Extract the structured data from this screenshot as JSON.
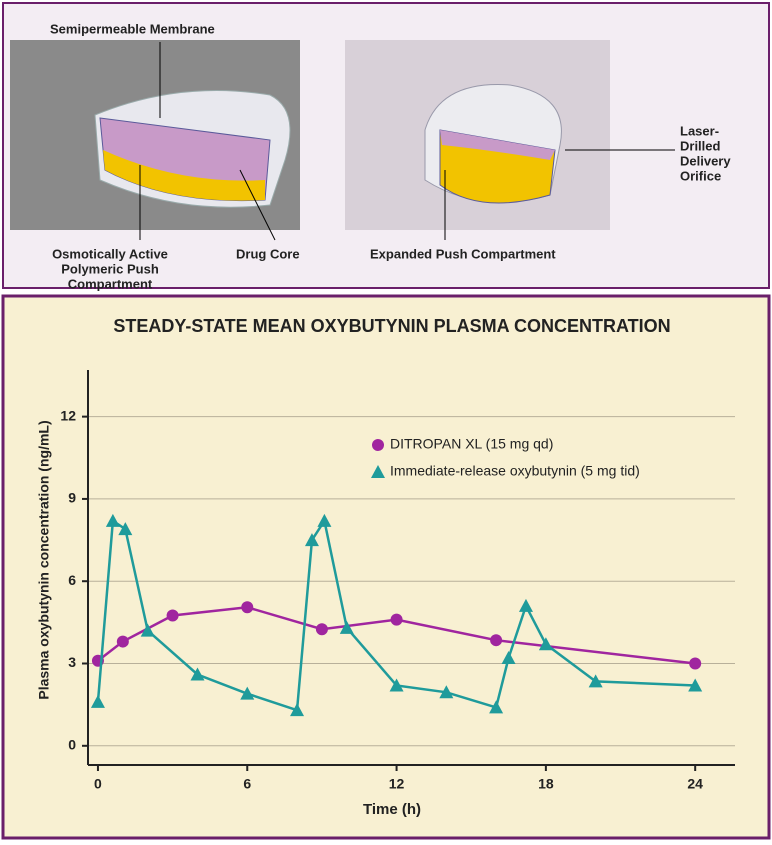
{
  "illustration": {
    "membrane": "Semipermeable Membrane",
    "push_compartment": [
      "Osmotically Active",
      "Polymeric Push",
      "Compartment"
    ],
    "drug_core": "Drug Core",
    "expanded": "Expanded Push Compartment",
    "orifice": [
      "Laser-",
      "Drilled",
      "Delivery",
      "Orifice"
    ]
  },
  "chart_data": {
    "type": "line",
    "title": "STEADY-STATE MEAN OXYBUTYNIN PLASMA CONCENTRATION",
    "x_label": "Time (h)",
    "y_label": "Plasma oxybutynin concentration (ng/mL)",
    "xlim": [
      -0.4,
      25.6
    ],
    "ylim": [
      -0.7,
      13.7
    ],
    "xticks": [
      0,
      6,
      12,
      18,
      24
    ],
    "yticks": [
      0,
      3,
      6,
      9,
      12
    ],
    "grid": true,
    "series": [
      {
        "name": "DITROPAN XL  (15 mg qd)",
        "color": "#a0259f",
        "marker": "circle",
        "x": [
          0,
          1,
          3,
          6,
          9,
          12,
          16,
          24
        ],
        "values": [
          3.1,
          3.8,
          4.75,
          5.05,
          4.25,
          4.6,
          3.85,
          3.0
        ]
      },
      {
        "name": "Immediate-release oxybutynin (5 mg tid)",
        "color": "#1f9b9b",
        "marker": "triangle",
        "x": [
          0,
          0.6,
          1.1,
          2,
          4,
          6,
          8,
          8.6,
          9.1,
          10,
          12,
          14,
          16,
          16.5,
          17.2,
          18,
          20,
          24
        ],
        "values": [
          1.6,
          8.2,
          7.9,
          4.2,
          2.6,
          1.9,
          1.3,
          7.5,
          8.2,
          4.3,
          2.2,
          1.95,
          1.4,
          3.2,
          5.1,
          3.7,
          2.35,
          2.2
        ]
      }
    ]
  }
}
